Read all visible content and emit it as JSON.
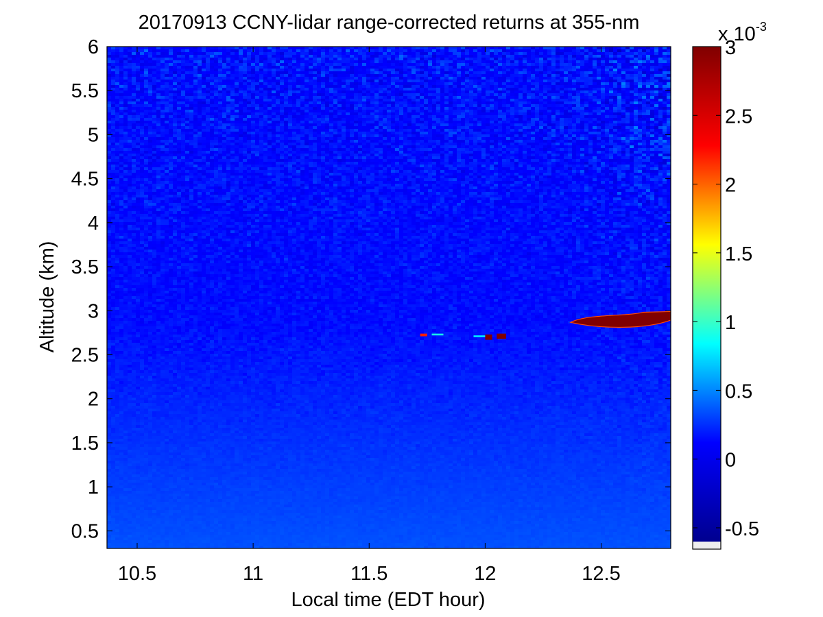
{
  "chart_data": {
    "type": "heatmap",
    "title": "20170913 CCNY-lidar range-corrected returns at 355-nm",
    "xlabel": "Local time (EDT hour)",
    "ylabel": "Altitude (km)",
    "xlim": [
      10.37,
      12.8
    ],
    "ylim": [
      0.3,
      6
    ],
    "x_ticks": [
      "10.5",
      "11",
      "11.5",
      "12",
      "12.5"
    ],
    "y_ticks": [
      "0.5",
      "1",
      "1.5",
      "2",
      "2.5",
      "3",
      "3.5",
      "4",
      "4.5",
      "5",
      "5.5",
      "6"
    ],
    "colorbar": {
      "colormap": "jet",
      "range": [
        -0.6,
        3
      ],
      "ticks": [
        "-0.5",
        "0",
        "0.5",
        "1",
        "1.5",
        "2",
        "2.5",
        "3"
      ],
      "multiplier_base": "x 10",
      "multiplier_exponent": "-3",
      "colors": [
        "#00008f",
        "#0000ff",
        "#00ffff",
        "#ffff00",
        "#ff0000",
        "#800000"
      ]
    },
    "background": {
      "value_near_ground": 0.35,
      "value_aloft": 0.15,
      "noise_increases_with_altitude": true
    },
    "features": [
      {
        "name": "cloud layer",
        "x_start": 12.38,
        "x_end": 12.8,
        "altitude_base": 2.8,
        "altitude_top": 2.95,
        "value": 3
      },
      {
        "name": "small cloud",
        "x_start": 12.0,
        "x_end": 12.03,
        "altitude_base": 2.67,
        "altitude_top": 2.73,
        "value": 3
      },
      {
        "name": "small cloud",
        "x_start": 12.05,
        "x_end": 12.09,
        "altitude_base": 2.68,
        "altitude_top": 2.74,
        "value": 3
      },
      {
        "name": "thin cloud",
        "x_start": 11.72,
        "x_end": 11.75,
        "altitude_base": 2.71,
        "altitude_top": 2.74,
        "value": 2.2
      },
      {
        "name": "thin cloud",
        "x_start": 11.77,
        "x_end": 11.82,
        "altitude_base": 2.72,
        "altitude_top": 2.74,
        "value": 0.9
      },
      {
        "name": "thin cloud",
        "x_start": 11.95,
        "x_end": 12.0,
        "altitude_base": 2.7,
        "altitude_top": 2.72,
        "value": 0.8
      }
    ]
  }
}
